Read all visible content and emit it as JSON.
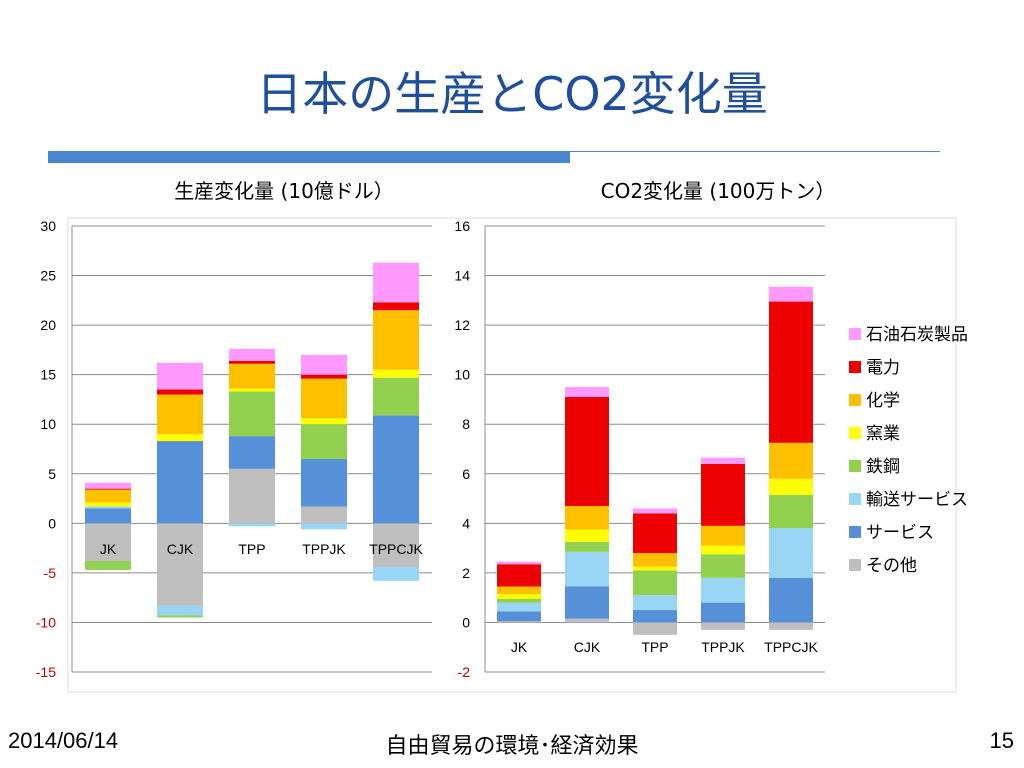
{
  "slide": {
    "title": "日本の生産とCO2変化量",
    "footer_date": "2014/06/14",
    "footer_center": "自由貿易の環境･経済効果",
    "page_number": "15"
  },
  "colors": {
    "title": "#1f4e9c",
    "accent_rule": "#4a86cf",
    "positive_tick": "#000000",
    "negative_tick": "#c00000"
  },
  "legend": [
    {
      "key": "petro",
      "label": "石油石炭製品",
      "color": "#ff99ff"
    },
    {
      "key": "elec",
      "label": "電力",
      "color": "#ee0000"
    },
    {
      "key": "chem",
      "label": "化学",
      "color": "#ffc000"
    },
    {
      "key": "ceramic",
      "label": "窯業",
      "color": "#ffff00"
    },
    {
      "key": "steel",
      "label": "鉄鋼",
      "color": "#92d050"
    },
    {
      "key": "transport",
      "label": "輸送サービス",
      "color": "#99d5f5"
    },
    {
      "key": "service",
      "label": "サービス",
      "color": "#5590d8"
    },
    {
      "key": "other",
      "label": "その他",
      "color": "#bfbfbf"
    }
  ],
  "chart_data": [
    {
      "type": "bar",
      "stacked": true,
      "title": "生産変化量 (10億ドル）",
      "categories": [
        "JK",
        "CJK",
        "TPP",
        "TPPJK",
        "TPPCJK"
      ],
      "ylim": [
        -15,
        30
      ],
      "yticks": [
        30,
        25,
        20,
        15,
        10,
        5,
        0,
        -5,
        -10,
        -15
      ],
      "grid": true,
      "series": [
        {
          "name": "その他",
          "key": "other",
          "values": [
            -3.8,
            -8.3,
            5.5,
            1.7,
            -4.4
          ]
        },
        {
          "name": "サービス",
          "key": "service",
          "values": [
            1.5,
            8.3,
            3.3,
            4.8,
            10.9
          ]
        },
        {
          "name": "輸送サービス",
          "key": "transport",
          "values": [
            0.2,
            -1.0,
            -0.3,
            -0.6,
            -1.4
          ]
        },
        {
          "name": "鉄鋼",
          "key": "steel",
          "values": [
            -0.9,
            -0.2,
            4.5,
            3.5,
            3.8
          ]
        },
        {
          "name": "窯業",
          "key": "ceramic",
          "values": [
            0.4,
            0.7,
            0.3,
            0.6,
            0.8
          ]
        },
        {
          "name": "化学",
          "key": "chem",
          "values": [
            1.3,
            4.0,
            2.5,
            4.0,
            6.0
          ]
        },
        {
          "name": "電力",
          "key": "elec",
          "values": [
            0.1,
            0.5,
            0.3,
            0.4,
            0.8
          ]
        },
        {
          "name": "石油石炭製品",
          "key": "petro",
          "values": [
            0.6,
            2.7,
            1.2,
            2.0,
            4.0
          ]
        }
      ]
    },
    {
      "type": "bar",
      "stacked": true,
      "title": "CO2変化量 (100万トン）",
      "categories": [
        "JK",
        "CJK",
        "TPP",
        "TPPJK",
        "TPPCJK"
      ],
      "ylim": [
        -2,
        16
      ],
      "yticks": [
        16,
        14,
        12,
        10,
        8,
        6,
        4,
        2,
        0,
        -2
      ],
      "grid": true,
      "series": [
        {
          "name": "その他",
          "key": "other",
          "values": [
            0.05,
            0.15,
            -0.5,
            -0.3,
            -0.3
          ]
        },
        {
          "name": "サービス",
          "key": "service",
          "values": [
            0.4,
            1.3,
            0.5,
            0.8,
            1.8
          ]
        },
        {
          "name": "輸送サービス",
          "key": "transport",
          "values": [
            0.35,
            1.4,
            0.6,
            1.0,
            2.0
          ]
        },
        {
          "name": "鉄鋼",
          "key": "steel",
          "values": [
            0.15,
            0.4,
            1.0,
            0.95,
            1.35
          ]
        },
        {
          "name": "窯業",
          "key": "ceramic",
          "values": [
            0.2,
            0.5,
            0.15,
            0.35,
            0.65
          ]
        },
        {
          "name": "化学",
          "key": "chem",
          "values": [
            0.3,
            0.95,
            0.55,
            0.8,
            1.45
          ]
        },
        {
          "name": "電力",
          "key": "elec",
          "values": [
            0.9,
            4.4,
            1.6,
            2.5,
            5.7
          ]
        },
        {
          "name": "石油石炭製品",
          "key": "petro",
          "values": [
            0.1,
            0.4,
            0.2,
            0.25,
            0.6
          ]
        }
      ]
    }
  ]
}
